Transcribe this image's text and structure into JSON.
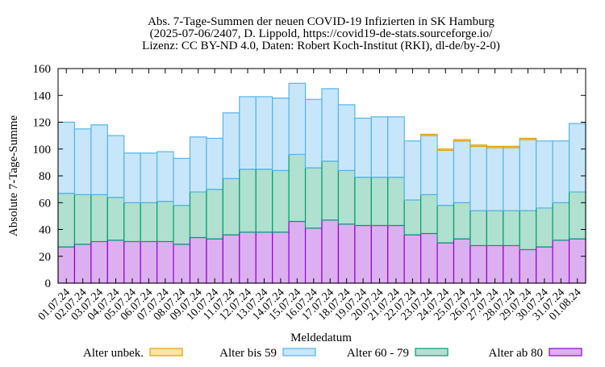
{
  "chart_data": {
    "type": "bar",
    "stacked": true,
    "title_lines": [
      "Abs. 7-Tage-Summen der neuen COVID-19 Infizierten in SK Hamburg",
      "(2025-07-06/2407, D. Lippold, https://covid19-de-stats.sourceforge.io/",
      "Lizenz: CC BY-ND 4.0, Daten: Robert Koch-Institut (RKI), dl-de/by-2-0)"
    ],
    "xlabel": "Meldedatum",
    "ylabel": "Absolute 7-Tage-Summe",
    "ylim": [
      0,
      160
    ],
    "yticks": [
      0,
      20,
      40,
      60,
      80,
      100,
      120,
      140,
      160
    ],
    "legend_position": "bottom",
    "categories": [
      "01.07.24",
      "02.07.24",
      "03.07.24",
      "04.07.24",
      "05.07.24",
      "06.07.24",
      "07.07.24",
      "08.07.24",
      "09.07.24",
      "10.07.24",
      "11.07.24",
      "12.07.24",
      "13.07.24",
      "14.07.24",
      "15.07.24",
      "16.07.24",
      "17.07.24",
      "18.07.24",
      "19.07.24",
      "20.07.24",
      "21.07.24",
      "22.07.24",
      "23.07.24",
      "24.07.24",
      "25.07.24",
      "26.07.24",
      "27.07.24",
      "28.07.24",
      "29.07.24",
      "30.07.24",
      "31.07.24",
      "01.08.24"
    ],
    "series": [
      {
        "name": "Alter ab 80",
        "color": "#dcb0f0",
        "stroke": "#9400d3",
        "values": [
          27,
          29,
          31,
          32,
          31,
          31,
          31,
          29,
          34,
          33,
          36,
          38,
          38,
          38,
          46,
          41,
          47,
          44,
          43,
          43,
          43,
          36,
          37,
          30,
          33,
          28,
          28,
          28,
          25,
          27,
          32,
          33
        ]
      },
      {
        "name": "Alter 60 - 79",
        "color": "#b0e0d0",
        "stroke": "#009e73",
        "values": [
          40,
          37,
          35,
          32,
          29,
          29,
          30,
          29,
          34,
          37,
          42,
          47,
          47,
          46,
          50,
          45,
          44,
          40,
          36,
          36,
          36,
          26,
          29,
          28,
          27,
          26,
          26,
          26,
          29,
          29,
          28,
          35
        ]
      },
      {
        "name": "Alter bis 59",
        "color": "#c8e6fa",
        "stroke": "#56b4e9",
        "values": [
          53,
          49,
          52,
          46,
          37,
          37,
          37,
          35,
          41,
          38,
          49,
          54,
          54,
          54,
          53,
          51,
          54,
          49,
          44,
          45,
          45,
          44,
          44,
          41,
          46,
          48,
          47,
          47,
          53,
          50,
          46,
          51
        ]
      },
      {
        "name": "Alter unbek.",
        "color": "#fde4a8",
        "stroke": "#e69f00",
        "values": [
          0,
          0,
          0,
          0,
          0,
          0,
          0,
          0,
          0,
          0,
          0,
          0,
          0,
          0,
          0,
          0,
          0,
          0,
          0,
          0,
          0,
          0,
          1,
          1,
          1,
          1,
          1,
          1,
          1,
          0,
          0,
          0
        ]
      }
    ],
    "legend_order": [
      "Alter unbek.",
      "Alter bis 59",
      "Alter 60 - 79",
      "Alter ab 80"
    ]
  }
}
